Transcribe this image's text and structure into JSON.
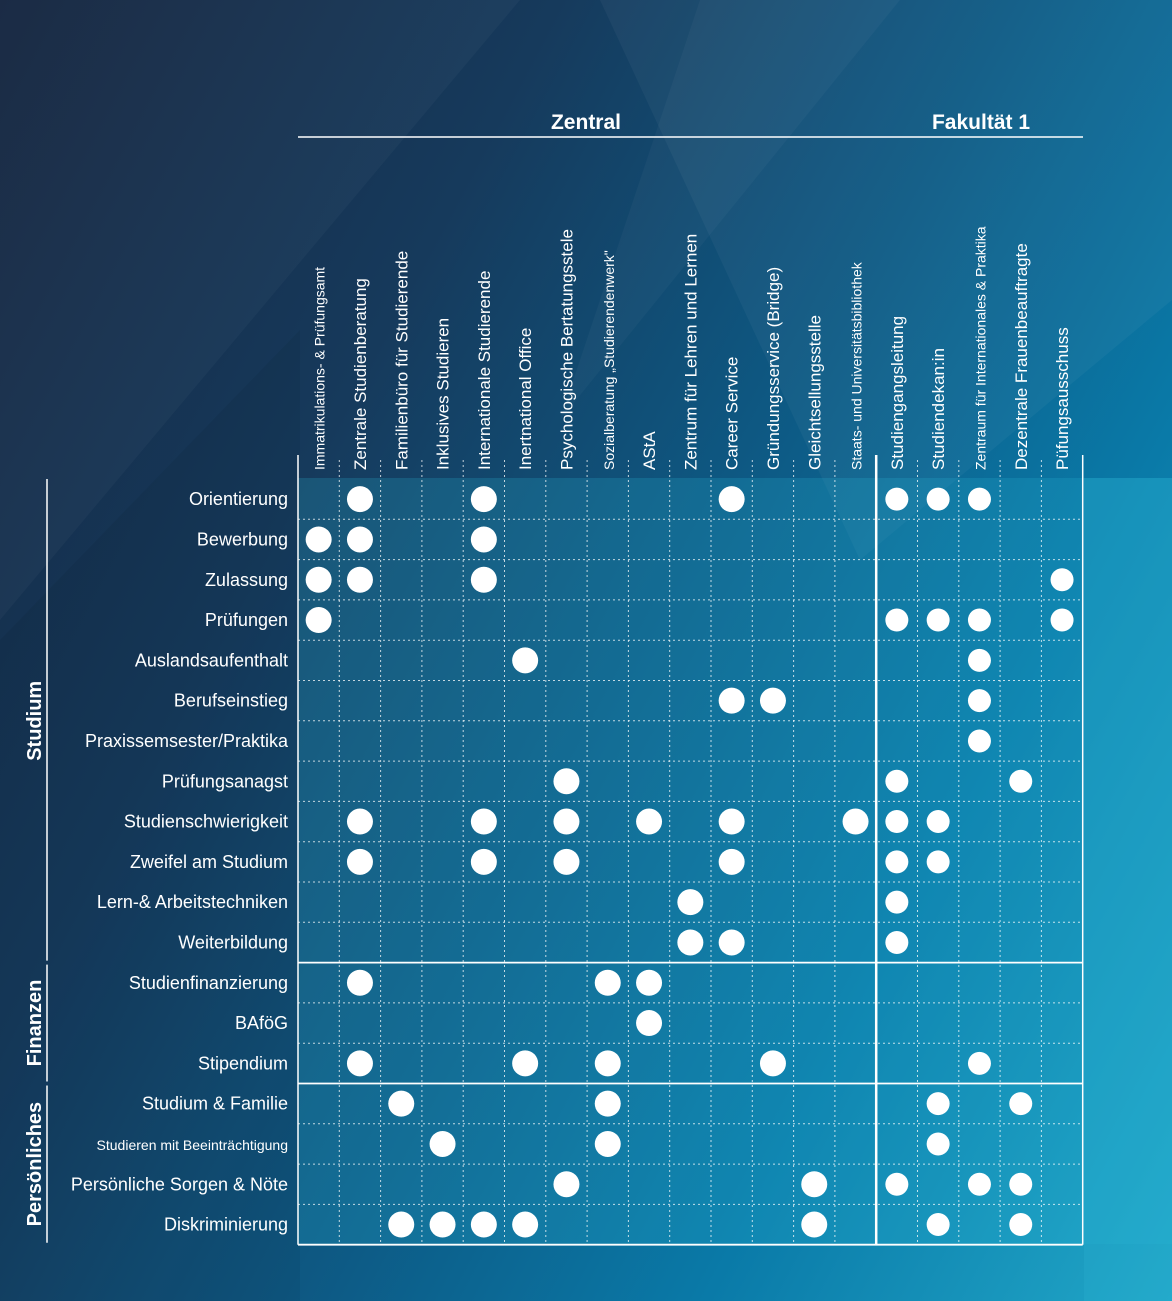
{
  "header": {
    "zentral": "Zentral",
    "fakultaet": "Fakultät 1"
  },
  "columns": [
    "Immatrikulations- & Prüfungsamt",
    "Zentrale Studienberatung",
    "Familienbüro für Studierende",
    "Inklusives Studieren",
    "Internationale Studierende",
    "Inertnational Office",
    "Psychologische Bertatungsstele",
    "Sozialberatung „Studierendenwerk\"",
    "AStA",
    "Zentrum für Lehren und Lernen",
    "Career Service",
    "Gründungsservice (Bridge)",
    "Gleichtsellungsstelle",
    "Staats- und Universitätsbibliothek",
    "Studiengangsleitung",
    "Studiendekan:in",
    "Zentraum für Internationales & Praktika",
    "Dezentrale Frauenbeauftragte",
    "Püfungsausschuss"
  ],
  "groups": [
    {
      "name": "Studium",
      "rows": [
        {
          "label": "Orientierung",
          "cols": [
            1,
            4,
            10,
            14,
            15,
            16
          ]
        },
        {
          "label": "Bewerbung",
          "cols": [
            0,
            1,
            4
          ]
        },
        {
          "label": "Zulassung",
          "cols": [
            0,
            1,
            4,
            18
          ]
        },
        {
          "label": "Prüfungen",
          "cols": [
            0,
            14,
            15,
            16,
            18
          ]
        },
        {
          "label": "Auslandsaufenthalt",
          "cols": [
            5,
            16
          ]
        },
        {
          "label": "Berufseinstieg",
          "cols": [
            10,
            11,
            16
          ]
        },
        {
          "label": "Praxissemsester/Praktika",
          "cols": [
            16
          ]
        },
        {
          "label": "Prüfungsanagst",
          "cols": [
            6,
            14,
            17
          ]
        },
        {
          "label": "Studienschwierigkeit",
          "cols": [
            1,
            4,
            6,
            8,
            10,
            13,
            14,
            15
          ]
        },
        {
          "label": "Zweifel am Studium",
          "cols": [
            1,
            4,
            6,
            10,
            14,
            15
          ]
        },
        {
          "label": "Lern-& Arbeitstechniken",
          "cols": [
            9,
            14
          ]
        },
        {
          "label": "Weiterbildung",
          "cols": [
            9,
            10,
            14
          ]
        }
      ]
    },
    {
      "name": "Finanzen",
      "rows": [
        {
          "label": "Studienfinanzierung",
          "cols": [
            1,
            7,
            8
          ]
        },
        {
          "label": "BAföG",
          "cols": [
            8
          ]
        },
        {
          "label": "Stipendium",
          "cols": [
            1,
            5,
            7,
            11,
            16
          ]
        }
      ]
    },
    {
      "name": "Persönliches",
      "rows": [
        {
          "label": "Studium & Familie",
          "cols": [
            2,
            7,
            15,
            17
          ]
        },
        {
          "label": "Studieren mit Beeinträchtigung",
          "cols": [
            3,
            7,
            15
          ]
        },
        {
          "label": "Persönliche Sorgen & Nöte",
          "cols": [
            6,
            12,
            14,
            16,
            17
          ]
        },
        {
          "label": "Diskriminierung",
          "cols": [
            2,
            3,
            4,
            5,
            12,
            15,
            17
          ]
        }
      ]
    }
  ],
  "colors": {
    "dot": "#ffffff",
    "grid": "#ffffff",
    "highlight": "#29a9cc"
  }
}
